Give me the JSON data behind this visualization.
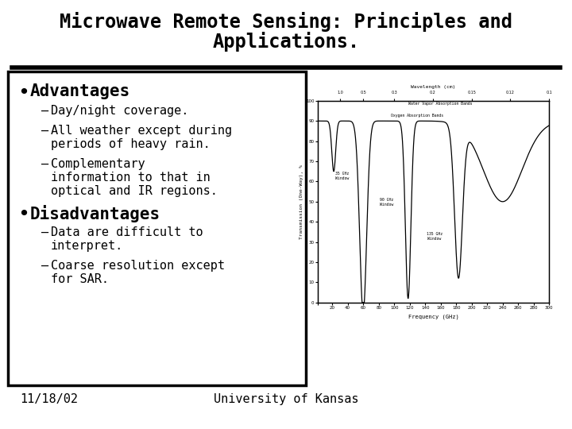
{
  "title_line1": "Microwave Remote Sensing: Principles and",
  "title_line2": "Applications.",
  "background_color": "#ffffff",
  "title_color": "#000000",
  "title_fontsize": 17,
  "body_font": "monospace",
  "bullet_main_fontsize": 15,
  "bullet_sub_fontsize": 11,
  "advantages_header": "Advantages",
  "advantages_bullets": [
    "Day/night coverage.",
    "All weather except during\nperiods of heavy rain.",
    "Complementary\ninformation to that in\noptical and IR regions."
  ],
  "disadvantages_header": "Disadvantages",
  "disadvantages_bullets": [
    "Data are difficult to\ninterpret.",
    "Coarse resolution except\nfor SAR."
  ],
  "footer_left": "11/18/02",
  "footer_center": "University of Kansas",
  "footer_fontsize": 11
}
